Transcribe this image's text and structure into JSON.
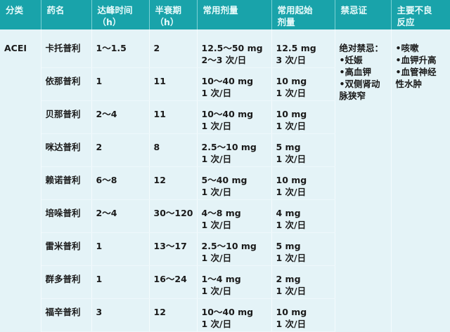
{
  "headers": [
    "分类",
    "药名",
    "达峰时间\n（h）",
    "半衰期\n（h）",
    "常用剂量",
    "常用起始\n剂量",
    "禁忌证",
    "主要不良\n反应"
  ],
  "category": "ACEI",
  "rows": [
    {
      "name": "卡托普利",
      "peak": "1～1.5",
      "half": "2",
      "dose": "12.5～50 mg\n2～3 次/日",
      "start": "12.5 mg\n3 次/日"
    },
    {
      "name": "依那普利",
      "peak": "1",
      "half": "11",
      "dose": "10～40 mg\n1 次/日",
      "start": "10 mg\n1 次/日"
    },
    {
      "name": "贝那普利",
      "peak": "2～4",
      "half": "11",
      "dose": "10～40 mg\n1 次/日",
      "start": "10 mg\n1 次/日"
    },
    {
      "name": "咪达普利",
      "peak": "2",
      "half": "8",
      "dose": "2.5～10 mg\n1 次/日",
      "start": "5 mg\n1 次/日"
    },
    {
      "name": "赖诺普利",
      "peak": "6～8",
      "half": "12",
      "dose": "5～40 mg\n1 次/日",
      "start": "10 mg\n1 次/日"
    },
    {
      "name": "培哚普利",
      "peak": "2～4",
      "half": "30～120",
      "dose": "4～8 mg\n1 次/日",
      "start": "4 mg\n1 次/日"
    },
    {
      "name": "雷米普利",
      "peak": "1",
      "half": "13～17",
      "dose": "2.5～10 mg\n1 次/日",
      "start": "5 mg\n1 次/日"
    },
    {
      "name": "群多普利",
      "peak": "1",
      "half": "16～24",
      "dose": "1～4 mg\n1 次/日",
      "start": "2 mg\n1 次/日"
    },
    {
      "name": "福辛普利",
      "peak": "3",
      "half": "12",
      "dose": "10～40 mg\n1 次/日",
      "start": "10 mg\n1 次/日"
    }
  ],
  "contraindications": "绝对禁忌：\n•妊娠\n•高血钾\n•双侧肾动\n脉狭窄",
  "adverse": "•咳嗽\n•血钾升高\n•血管神经\n性水肿",
  "colors": {
    "header": "#19a3aa",
    "background": "#e4f3f7"
  }
}
